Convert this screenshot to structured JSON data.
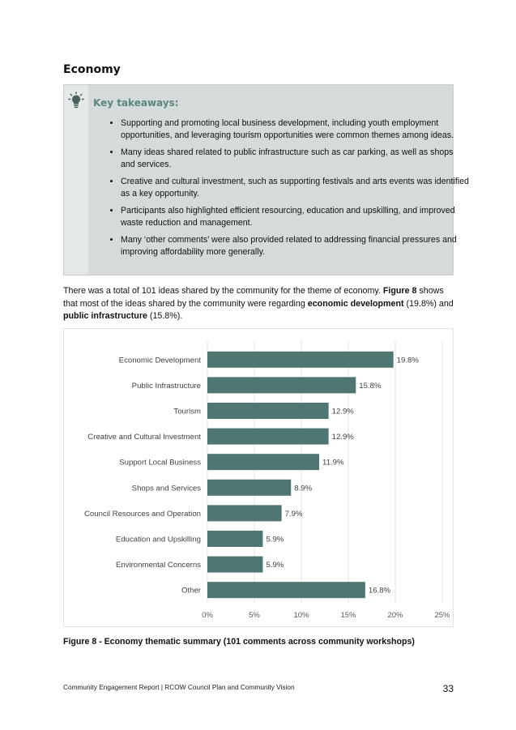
{
  "section": {
    "title": "Economy"
  },
  "takeaways": {
    "heading": "Key takeaways:",
    "icon": "lightbulb-icon",
    "items": [
      "Supporting and promoting local business development, including youth employment opportunities, and leveraging tourism opportunities were common themes among ideas.",
      "Many ideas shared related to public infrastructure such as car parking, as well as shops and services.",
      "Creative and cultural investment, such as supporting festivals and arts events was identified as a key opportunity.",
      "Participants also highlighted efficient resourcing, education and upskilling, and improved waste reduction and management.",
      "Many ‘other comments’ were also provided related to addressing financial pressures and improving affordability more generally."
    ]
  },
  "intro": {
    "part1": "There was a total of 101 ideas shared by the community for the theme of economy. ",
    "figure_ref": "Figure 8",
    "part2": " shows that most of the ideas shared by the community were regarding ",
    "emph1": "economic development",
    "part3": " (19.8%) and ",
    "emph2": "public infrastructure",
    "part4": " (15.8%)."
  },
  "chart_data": {
    "type": "bar",
    "orientation": "horizontal",
    "categories": [
      "Economic Development",
      "Public Infrastructure",
      "Tourism",
      "Creative and Cultural Investment",
      "Support Local Business",
      "Shops and Services",
      "Council Resources and Operation",
      "Education and Upskilling",
      "Environmental Concerns",
      "Other"
    ],
    "values": [
      19.8,
      15.8,
      12.9,
      12.9,
      11.9,
      8.9,
      7.9,
      5.9,
      5.9,
      16.8
    ],
    "value_labels": [
      "19.8%",
      "15.8%",
      "12.9%",
      "12.9%",
      "11.9%",
      "8.9%",
      "7.9%",
      "5.9%",
      "5.9%",
      "16.8%"
    ],
    "xlim": [
      0,
      25
    ],
    "xticks": [
      0,
      5,
      10,
      15,
      20,
      25
    ],
    "xtick_labels": [
      "0%",
      "5%",
      "10%",
      "15%",
      "20%",
      "25%"
    ],
    "grid": "vertical",
    "bar_color": "#4f7673",
    "title": "",
    "xlabel": "",
    "ylabel": ""
  },
  "figure": {
    "caption": "Figure 8 - Economy thematic summary (101 comments across community workshops)"
  },
  "footer": {
    "text": "Community Engagement Report | RCOW Council Plan and Community Vision",
    "page_number": "33"
  }
}
